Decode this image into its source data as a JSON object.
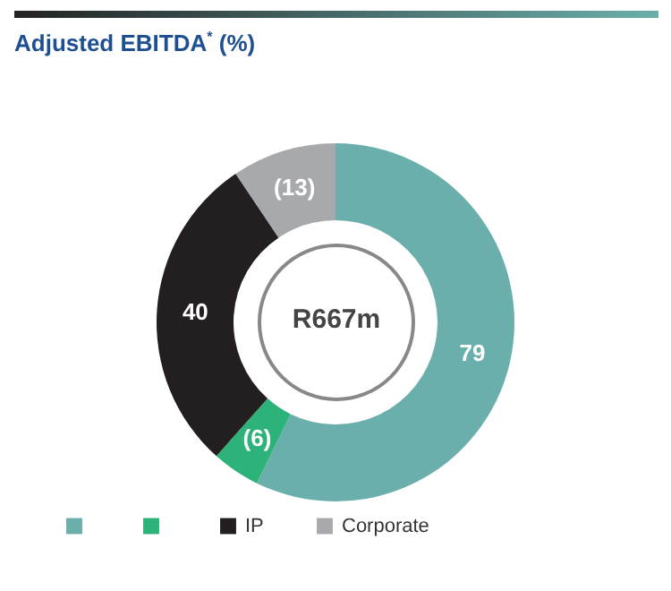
{
  "chart_data": {
    "type": "donut",
    "title": "Adjusted EBITDA$^{*}$ (%)",
    "categories": [
      null,
      null,
      "IP",
      "Corporate"
    ],
    "values": [
      79,
      6,
      40,
      13
    ],
    "value_labels": [
      "79",
      "(6)",
      "40",
      "(13)"
    ],
    "colors": [
      "#6aafab",
      "#2db37a",
      "#231f20",
      "#a7a9ac"
    ],
    "annotations": [
      "R667m"
    ],
    "legend": "bottom"
  }
}
